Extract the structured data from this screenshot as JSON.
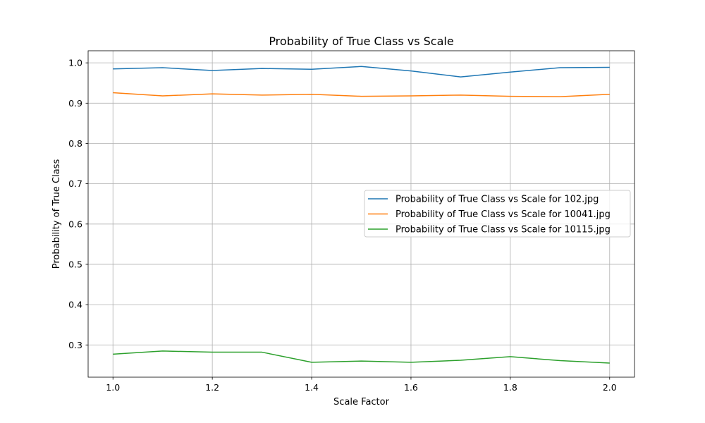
{
  "chart_data": {
    "type": "line",
    "title": "Probability of True Class vs Scale",
    "xlabel": "Scale Factor",
    "ylabel": "Probability of True Class",
    "xlim": [
      0.95,
      2.05
    ],
    "ylim": [
      0.22,
      1.03
    ],
    "xticks": [
      1.0,
      1.2,
      1.4,
      1.6,
      1.8,
      2.0
    ],
    "xtick_labels": [
      "1.0",
      "1.2",
      "1.4",
      "1.6",
      "1.8",
      "2.0"
    ],
    "yticks": [
      0.3,
      0.4,
      0.5,
      0.6,
      0.7,
      0.8,
      0.9,
      1.0
    ],
    "ytick_labels": [
      "0.3",
      "0.4",
      "0.5",
      "0.6",
      "0.7",
      "0.8",
      "0.9",
      "1.0"
    ],
    "grid": true,
    "legend_position": "center-right",
    "x": [
      1.0,
      1.1,
      1.2,
      1.3,
      1.4,
      1.5,
      1.6,
      1.7,
      1.8,
      1.9,
      2.0
    ],
    "series": [
      {
        "name": "Probability of True Class vs Scale for 102.jpg",
        "color": "#1f77b4",
        "values": [
          0.985,
          0.988,
          0.981,
          0.986,
          0.984,
          0.991,
          0.98,
          0.965,
          0.977,
          0.988,
          0.989
        ]
      },
      {
        "name": "Probability of True Class vs Scale for 10041.jpg",
        "color": "#ff7f0e",
        "values": [
          0.926,
          0.918,
          0.923,
          0.92,
          0.922,
          0.917,
          0.918,
          0.92,
          0.917,
          0.916,
          0.922
        ]
      },
      {
        "name": "Probability of True Class vs Scale for 10115.jpg",
        "color": "#2ca02c",
        "values": [
          0.277,
          0.285,
          0.282,
          0.282,
          0.257,
          0.26,
          0.257,
          0.262,
          0.271,
          0.261,
          0.255
        ]
      }
    ]
  }
}
